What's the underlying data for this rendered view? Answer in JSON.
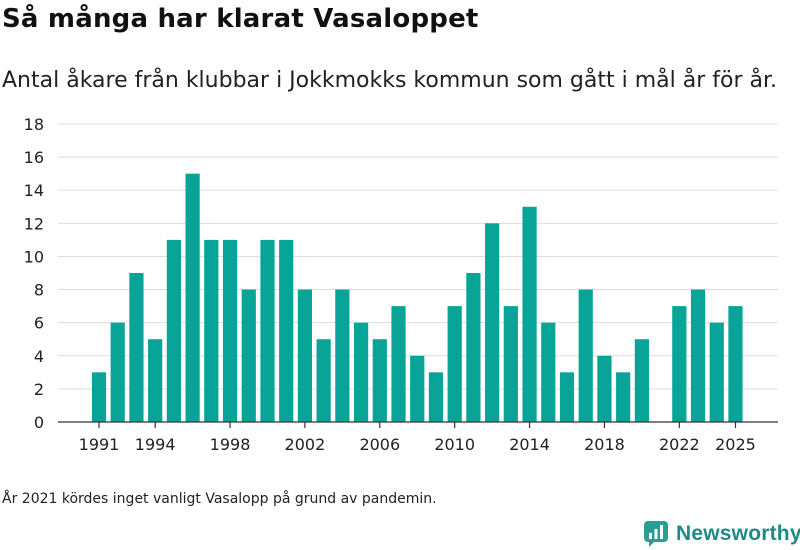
{
  "title": "Så många har klarat Vasaloppet",
  "subtitle": "Antal åkare från klubbar i Jokkmokks kommun som gått i mål år för år.",
  "footnote": "År 2021 kördes inget vanligt Vasalopp på grund av pandemin.",
  "brand": {
    "name": "Newsworthy",
    "color": "#1f8a84"
  },
  "colors": {
    "bar": "#08a497",
    "grid": "#dddddd",
    "axis": "#333333",
    "text": "#222222"
  },
  "chart_data": {
    "type": "bar",
    "title": "Så många har klarat Vasaloppet",
    "xlabel": "",
    "ylabel": "",
    "ylim": [
      0,
      18
    ],
    "yticks": [
      0,
      2,
      4,
      6,
      8,
      10,
      12,
      14,
      16,
      18
    ],
    "xticks": [
      1991,
      1994,
      1998,
      2002,
      2006,
      2010,
      2014,
      2018,
      2022,
      2025
    ],
    "grid": true,
    "legend": "none",
    "categories": [
      1991,
      1992,
      1993,
      1994,
      1995,
      1996,
      1997,
      1998,
      1999,
      2000,
      2001,
      2002,
      2003,
      2004,
      2005,
      2006,
      2007,
      2008,
      2009,
      2010,
      2011,
      2012,
      2013,
      2014,
      2015,
      2016,
      2017,
      2018,
      2019,
      2020,
      2021,
      2022,
      2023,
      2024,
      2025
    ],
    "values": [
      3,
      6,
      9,
      5,
      11,
      15,
      11,
      11,
      8,
      11,
      11,
      8,
      5,
      8,
      6,
      5,
      7,
      4,
      3,
      7,
      9,
      12,
      7,
      13,
      6,
      3,
      8,
      4,
      3,
      5,
      null,
      7,
      8,
      6,
      7
    ]
  }
}
